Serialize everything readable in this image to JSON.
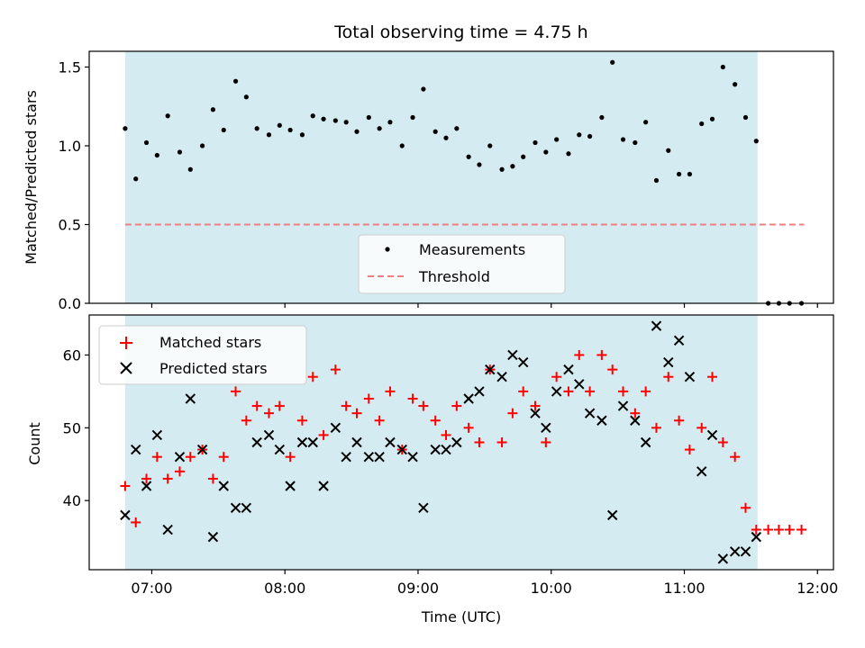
{
  "chart_data": [
    {
      "type": "scatter",
      "title": "Total observing time = 4.75 h",
      "xlabel": "",
      "ylabel": "Matched/Predicted stars",
      "ylim": [
        0,
        1.6
      ],
      "yticks": [
        "0.0",
        "0.5",
        "1.0",
        "1.5"
      ],
      "observing_window_hours": [
        6.8,
        11.55
      ],
      "legend": {
        "position": "lower-center",
        "entries": [
          "Measurements",
          "Threshold"
        ]
      },
      "threshold": {
        "name": "Threshold",
        "value": 0.5,
        "x_range_hours": [
          6.8,
          11.9
        ],
        "color": "#f08080"
      },
      "series": [
        {
          "name": "Measurements",
          "color": "#000000",
          "x_hours": [
            6.8,
            6.88,
            6.96,
            7.04,
            7.12,
            7.21,
            7.29,
            7.38,
            7.46,
            7.54,
            7.63,
            7.71,
            7.79,
            7.88,
            7.96,
            8.04,
            8.13,
            8.21,
            8.29,
            8.38,
            8.46,
            8.54,
            8.63,
            8.71,
            8.79,
            8.88,
            8.96,
            9.04,
            9.13,
            9.21,
            9.29,
            9.38,
            9.46,
            9.54,
            9.63,
            9.71,
            9.79,
            9.88,
            9.96,
            10.04,
            10.13,
            10.21,
            10.29,
            10.38,
            10.46,
            10.54,
            10.63,
            10.71,
            10.79,
            10.88,
            10.96,
            11.04,
            11.13,
            11.21,
            11.29,
            11.38,
            11.46,
            11.54,
            11.63,
            11.71,
            11.79,
            11.88
          ],
          "values": [
            1.11,
            0.79,
            1.02,
            0.94,
            1.19,
            0.96,
            0.85,
            1.0,
            1.23,
            1.1,
            1.41,
            1.31,
            1.11,
            1.07,
            1.13,
            1.1,
            1.07,
            1.19,
            1.17,
            1.16,
            1.15,
            1.09,
            1.18,
            1.11,
            1.15,
            1.0,
            1.18,
            1.36,
            1.09,
            1.05,
            1.11,
            0.93,
            0.88,
            1.0,
            0.85,
            0.87,
            0.93,
            1.02,
            0.96,
            1.04,
            0.95,
            1.07,
            1.06,
            1.18,
            1.53,
            1.04,
            1.02,
            1.15,
            0.78,
            0.97,
            0.82,
            0.82,
            1.14,
            1.17,
            1.5,
            1.39,
            1.18,
            1.03,
            0.0,
            0.0,
            0.0,
            0.0
          ]
        }
      ]
    },
    {
      "type": "scatter",
      "title": "",
      "xlabel": "Time (UTC)",
      "ylabel": "Count",
      "ylim": [
        30.5,
        65.5
      ],
      "yticks": [
        "40",
        "50",
        "60"
      ],
      "xticks": [
        "07:00",
        "08:00",
        "09:00",
        "10:00",
        "11:00",
        "12:00"
      ],
      "xlim_hours": [
        6.53,
        12.12
      ],
      "observing_window_hours": [
        6.8,
        11.55
      ],
      "legend": {
        "position": "top-left",
        "entries": [
          "Matched stars",
          "Predicted stars"
        ]
      },
      "series": [
        {
          "name": "Matched stars",
          "marker": "+",
          "color": "#ff0000",
          "x_hours": [
            6.8,
            6.88,
            6.96,
            7.04,
            7.12,
            7.21,
            7.29,
            7.38,
            7.46,
            7.54,
            7.63,
            7.71,
            7.79,
            7.88,
            7.96,
            8.04,
            8.13,
            8.21,
            8.29,
            8.38,
            8.46,
            8.54,
            8.63,
            8.71,
            8.79,
            8.88,
            8.96,
            9.04,
            9.13,
            9.21,
            9.29,
            9.38,
            9.46,
            9.54,
            9.63,
            9.71,
            9.79,
            9.88,
            9.96,
            10.04,
            10.13,
            10.21,
            10.29,
            10.38,
            10.46,
            10.54,
            10.63,
            10.71,
            10.79,
            10.88,
            10.96,
            11.04,
            11.13,
            11.21,
            11.29,
            11.38,
            11.46,
            11.54,
            11.63,
            11.71,
            11.79,
            11.88
          ],
          "values": [
            42,
            37,
            43,
            46,
            43,
            44,
            46,
            47,
            43,
            46,
            55,
            51,
            53,
            52,
            53,
            46,
            51,
            57,
            49,
            58,
            53,
            52,
            54,
            51,
            55,
            47,
            54,
            53,
            51,
            49,
            53,
            50,
            48,
            58,
            48,
            52,
            55,
            53,
            48,
            57,
            55,
            60,
            55,
            60,
            58,
            55,
            52,
            55,
            50,
            57,
            51,
            47,
            50,
            57,
            48,
            46,
            39,
            36,
            36,
            36,
            36,
            36
          ]
        },
        {
          "name": "Predicted stars",
          "marker": "x",
          "color": "#000000",
          "x_hours": [
            6.8,
            6.88,
            6.96,
            7.04,
            7.12,
            7.21,
            7.29,
            7.38,
            7.46,
            7.54,
            7.63,
            7.71,
            7.79,
            7.88,
            7.96,
            8.04,
            8.13,
            8.21,
            8.29,
            8.38,
            8.46,
            8.54,
            8.63,
            8.71,
            8.79,
            8.88,
            8.96,
            9.04,
            9.13,
            9.21,
            9.29,
            9.38,
            9.46,
            9.54,
            9.63,
            9.71,
            9.79,
            9.88,
            9.96,
            10.04,
            10.13,
            10.21,
            10.29,
            10.38,
            10.46,
            10.54,
            10.63,
            10.71,
            10.79,
            10.88,
            10.96,
            11.04,
            11.13,
            11.21,
            11.29,
            11.38,
            11.46,
            11.54
          ],
          "values": [
            38,
            47,
            42,
            49,
            36,
            46,
            54,
            47,
            35,
            42,
            39,
            39,
            48,
            49,
            47,
            42,
            48,
            48,
            42,
            50,
            46,
            48,
            46,
            46,
            48,
            47,
            46,
            39,
            47,
            47,
            48,
            54,
            55,
            58,
            57,
            60,
            59,
            52,
            50,
            55,
            58,
            56,
            52,
            51,
            38,
            53,
            51,
            48,
            64,
            59,
            62,
            57,
            44,
            49,
            32,
            33,
            33,
            35
          ]
        }
      ]
    }
  ],
  "colors": {
    "window_fill": "#d4ebf1",
    "threshold": "#f08080",
    "matched": "#ff0000",
    "predicted": "#000000"
  }
}
